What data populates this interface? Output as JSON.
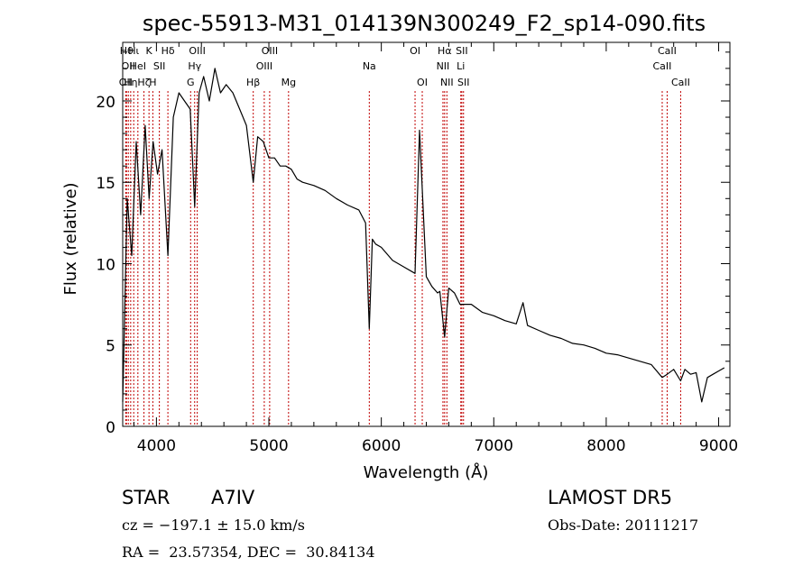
{
  "chart_data": {
    "type": "line",
    "title": "spec-55913-M31_014139N300249_F2_sp14-090.fits",
    "xlabel": "Wavelength (Å)",
    "ylabel": "Flux (relative)",
    "xlim": [
      3700,
      9100
    ],
    "ylim": [
      0,
      23.6
    ],
    "xticks": [
      4000,
      5000,
      6000,
      7000,
      8000,
      9000
    ],
    "yticks": [
      0,
      5,
      10,
      15,
      20
    ],
    "grid": false,
    "line_color": "#000000",
    "marker_color": "#c00000",
    "series": [
      {
        "x": [
          3700,
          3740,
          3780,
          3820,
          3860,
          3900,
          3935,
          3970,
          4010,
          4050,
          4102,
          4150,
          4200,
          4250,
          4300,
          4340,
          4380,
          4420,
          4470,
          4520,
          4570,
          4620,
          4680,
          4740,
          4800,
          4861,
          4900,
          4950,
          5000,
          5050,
          5100,
          5150,
          5200,
          5250,
          5300,
          5400,
          5500,
          5600,
          5700,
          5800,
          5860,
          5893,
          5920,
          5950,
          6000,
          6100,
          6200,
          6300,
          6340,
          6400,
          6450,
          6500,
          6520,
          6563,
          6600,
          6650,
          6700,
          6800,
          6900,
          7000,
          7100,
          7200,
          7260,
          7300,
          7400,
          7500,
          7600,
          7700,
          7800,
          7900,
          8000,
          8100,
          8200,
          8300,
          8400,
          8498,
          8542,
          8600,
          8662,
          8700,
          8750,
          8800,
          8850,
          8900,
          8950,
          9000,
          9050
        ],
        "y": [
          1.5,
          14.0,
          10.5,
          17.5,
          13.0,
          18.5,
          14.0,
          17.5,
          15.5,
          17.0,
          10.5,
          19.0,
          20.5,
          20.0,
          19.5,
          13.5,
          20.5,
          21.5,
          20.0,
          22.0,
          20.5,
          21.0,
          20.5,
          19.5,
          18.5,
          15.0,
          17.8,
          17.5,
          16.5,
          16.5,
          16.0,
          16.0,
          15.8,
          15.2,
          15.0,
          14.8,
          14.5,
          14.0,
          13.6,
          13.3,
          12.5,
          6.0,
          11.5,
          11.2,
          11.0,
          10.2,
          9.8,
          9.4,
          18.2,
          9.2,
          8.6,
          8.2,
          8.3,
          5.5,
          8.5,
          8.2,
          7.5,
          7.5,
          7.0,
          6.8,
          6.5,
          6.3,
          7.6,
          6.2,
          5.9,
          5.6,
          5.4,
          5.1,
          5.0,
          4.8,
          4.5,
          4.4,
          4.2,
          4.0,
          3.8,
          3.0,
          3.2,
          3.5,
          2.8,
          3.5,
          3.2,
          3.3,
          1.5,
          3.0,
          3.2,
          3.4,
          3.6
        ]
      }
    ],
    "line_markers": [
      {
        "x": 3727,
        "label": "OII",
        "row": 2
      },
      {
        "x": 3734,
        "label": "Hθ",
        "row": 0
      },
      {
        "x": 3750,
        "label": "OII",
        "row": 1
      },
      {
        "x": 3771,
        "label": "Hη",
        "row": 2
      },
      {
        "x": 3798,
        "label": "Hι",
        "row": 0
      },
      {
        "x": 3835,
        "label": "HeI",
        "row": 1
      },
      {
        "x": 3889,
        "label": "Hζ",
        "row": 2
      },
      {
        "x": 3934,
        "label": "K",
        "row": 0
      },
      {
        "x": 3968,
        "label": "H",
        "row": 2
      },
      {
        "x": 4026,
        "label": "SII",
        "row": 1
      },
      {
        "x": 4102,
        "label": "Hδ",
        "row": 0
      },
      {
        "x": 4304,
        "label": "G",
        "row": 2
      },
      {
        "x": 4340,
        "label": "Hγ",
        "row": 1
      },
      {
        "x": 4363,
        "label": "OIII",
        "row": 0
      },
      {
        "x": 4861,
        "label": "Hβ",
        "row": 2
      },
      {
        "x": 4959,
        "label": "OIII",
        "row": 1
      },
      {
        "x": 5007,
        "label": "OIII",
        "row": 0
      },
      {
        "x": 5175,
        "label": "Mg",
        "row": 2
      },
      {
        "x": 5893,
        "label": "Na",
        "row": 1
      },
      {
        "x": 6300,
        "label": "OI",
        "row": 0
      },
      {
        "x": 6364,
        "label": "OI",
        "row": 2
      },
      {
        "x": 6548,
        "label": "NII",
        "row": 1
      },
      {
        "x": 6563,
        "label": "Hα",
        "row": 0
      },
      {
        "x": 6583,
        "label": "NII",
        "row": 2
      },
      {
        "x": 6707,
        "label": "Li",
        "row": 1
      },
      {
        "x": 6716,
        "label": "SII",
        "row": 0
      },
      {
        "x": 6731,
        "label": "SII",
        "row": 2
      },
      {
        "x": 8498,
        "label": "CaII",
        "row": 1
      },
      {
        "x": 8542,
        "label": "CaII",
        "row": 0
      },
      {
        "x": 8662,
        "label": "CaII",
        "row": 2
      }
    ]
  },
  "info": {
    "object_class": "STAR",
    "subclass": "A7IV",
    "survey": "LAMOST DR5",
    "velocity": "cz = −197.1 ± 15.0 km/s",
    "obs_date": "Obs-Date: 20111217",
    "coordinates": "RA =  23.57354, DEC =  30.84134"
  }
}
